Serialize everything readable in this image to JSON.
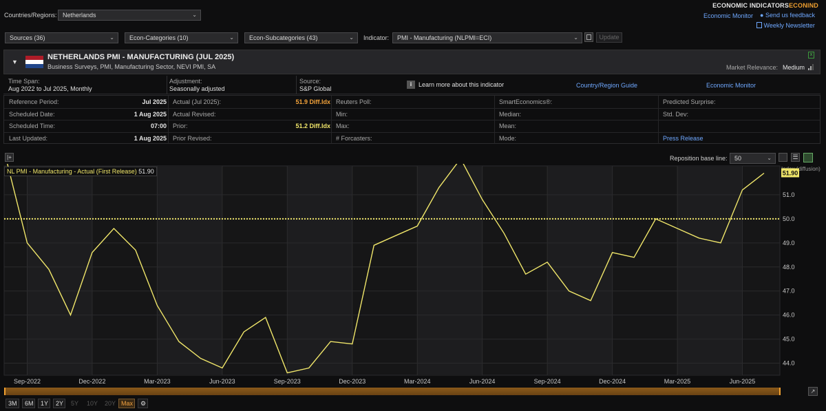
{
  "header": {
    "title_main": "ECONOMIC INDICATORS",
    "title_accent": "ECONIND",
    "economic_monitor_link": "Economic Monitor",
    "feedback_link": "Send us feedback",
    "newsletter_link": "Weekly Newsletter"
  },
  "filters": {
    "countries_label": "Countries/Regions:",
    "country_value": "Netherlands",
    "sources": "Sources (36)",
    "econ_categories": "Econ-Categories (10)",
    "econ_subcategories": "Econ-Subcategories (43)",
    "indicator_label": "Indicator:",
    "indicator_value": "PMI - Manufacturing (NLPMI=ECI)",
    "update_button": "Update"
  },
  "indicator": {
    "title": "NETHERLANDS PMI - MANUFACTURING (JUL 2025)",
    "subtitle": "Business Surveys, PMI, Manufacturing Sector, NEVI PMI, SA",
    "market_relevance_label": "Market Relevance:",
    "market_relevance_value": "Medium",
    "flag_colors": [
      "#ae1c28",
      "#ffffff",
      "#21468b"
    ]
  },
  "info": {
    "time_span_label": "Time Span:",
    "time_span_value": "Aug 2022 to Jul 2025, Monthly",
    "adjustment_label": "Adjustment:",
    "adjustment_value": "Seasonally adjusted",
    "source_label": "Source:",
    "source_value": "S&P Global",
    "learn_more": "Learn more about this indicator",
    "country_guide": "Country/Region Guide",
    "economic_monitor": "Economic Monitor"
  },
  "table": {
    "col1": [
      {
        "label": "Reference Period:",
        "value": "Jul 2025"
      },
      {
        "label": "Scheduled Date:",
        "value": "1 Aug 2025"
      },
      {
        "label": "Scheduled Time:",
        "value": "07:00"
      },
      {
        "label": "Last Updated:",
        "value": "1 Aug 2025"
      }
    ],
    "col2": [
      {
        "label": "Actual (Jul 2025):",
        "value": "51.9 Diff.Idx"
      },
      {
        "label": "Actual Revised:",
        "value": ""
      },
      {
        "label": "Prior:",
        "value": "51.2 Diff.Idx"
      },
      {
        "label": "Prior Revised:",
        "value": ""
      }
    ],
    "col3": [
      "Reuters Poll:",
      "Min:",
      "Max:",
      "# Forcasters:"
    ],
    "col4": [
      "SmartEconomics®:",
      "Median:",
      "Mean:",
      "Mode:"
    ],
    "col5": [
      "Predicted Surprise:",
      "Std. Dev:",
      "",
      "Press Release"
    ]
  },
  "chart_controls": {
    "baseline_label": "Reposition base line:",
    "baseline_value": "50"
  },
  "chart_data": {
    "type": "line",
    "legend": "NL PMI - Manufacturing - Actual (First Release)",
    "legend_value": "51.90",
    "ylabel": "Index (diffusion)",
    "yticks": [
      "44.0",
      "45.0",
      "46.0",
      "47.0",
      "48.0",
      "49.0",
      "50.0",
      "51.0"
    ],
    "ylim": [
      43.5,
      52.2
    ],
    "baseline": 50,
    "last_value_label": "51.90",
    "xticks": [
      "Sep-2022",
      "Dec-2022",
      "Mar-2023",
      "Jun-2023",
      "Sep-2023",
      "Dec-2023",
      "Mar-2024",
      "Jun-2024",
      "Sep-2024",
      "Dec-2024",
      "Mar-2025",
      "Jun-2025"
    ],
    "x": [
      "Aug-2022",
      "Sep-2022",
      "Oct-2022",
      "Nov-2022",
      "Dec-2022",
      "Jan-2023",
      "Feb-2023",
      "Mar-2023",
      "Apr-2023",
      "May-2023",
      "Jun-2023",
      "Jul-2023",
      "Aug-2023",
      "Sep-2023",
      "Oct-2023",
      "Nov-2023",
      "Dec-2023",
      "Jan-2024",
      "Feb-2024",
      "Mar-2024",
      "Apr-2024",
      "May-2024",
      "Jun-2024",
      "Jul-2024",
      "Aug-2024",
      "Sep-2024",
      "Oct-2024",
      "Nov-2024",
      "Dec-2024",
      "Jan-2025",
      "Feb-2025",
      "Mar-2025",
      "Apr-2025",
      "May-2025",
      "Jun-2025",
      "Jul-2025"
    ],
    "values": [
      52.6,
      49.0,
      47.9,
      46.0,
      48.6,
      49.6,
      48.7,
      46.4,
      44.9,
      44.2,
      43.8,
      45.3,
      45.9,
      43.6,
      43.8,
      44.9,
      44.8,
      48.9,
      49.3,
      49.7,
      51.3,
      52.5,
      50.8,
      49.4,
      47.7,
      48.2,
      47.0,
      46.6,
      48.6,
      48.4,
      50.0,
      49.6,
      49.2,
      49.0,
      51.2,
      51.9
    ],
    "line_color": "#f0e66a",
    "baseline_color": "#f0e66a",
    "grid": true
  },
  "timeframes": [
    "3M",
    "6M",
    "1Y",
    "2Y",
    "5Y",
    "10Y",
    "20Y",
    "Max"
  ],
  "timeframes_disabled": [
    "5Y",
    "10Y",
    "20Y"
  ],
  "timeframe_selected": "Max"
}
